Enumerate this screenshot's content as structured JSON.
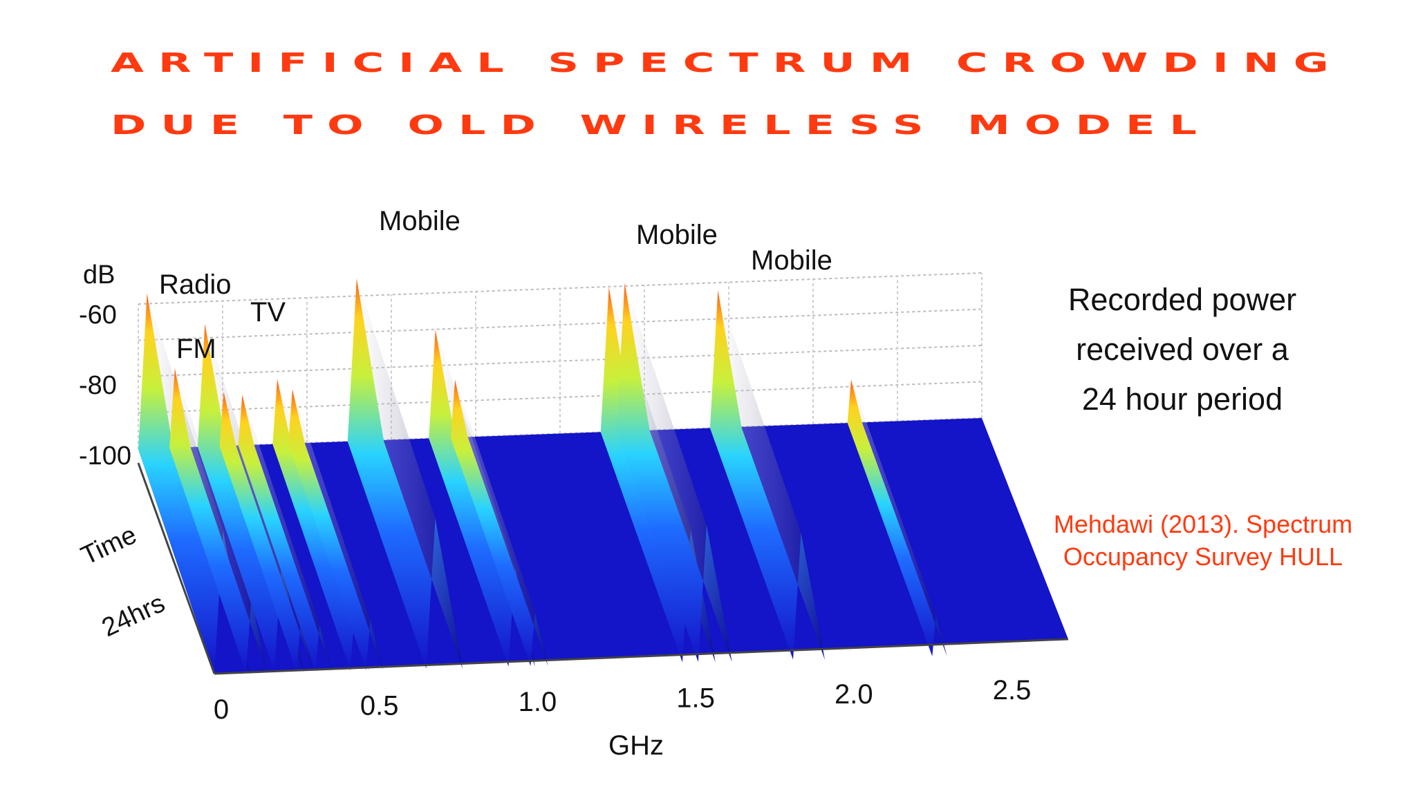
{
  "title": {
    "line1": "ARTIFICIAL SPECTRUM CROWDING",
    "line2": "DUE TO OLD WIRELESS MODEL"
  },
  "caption": {
    "line1": "Recorded power",
    "line2": "received over a",
    "line3": "24 hour period"
  },
  "citation": {
    "line1": "Mehdawi (2013). Spectrum",
    "line2": "Occupancy Survey HULL"
  },
  "colors": {
    "title": "#ff3a10",
    "floor": "#1414c8",
    "peak_low": "#1e6bff",
    "peak_mid": "#ffd21e",
    "peak_high": "#ff5a14"
  },
  "chart_data": {
    "type": "surface-3d",
    "x_axis": {
      "label": "GHz",
      "ticks": [
        "0",
        "0.5",
        "1.0",
        "1.5",
        "2.0",
        "2.5"
      ],
      "range": [
        0,
        2.7
      ]
    },
    "z_axis": {
      "label": "dB",
      "ticks": [
        "-60",
        "-80",
        "-100"
      ],
      "range": [
        -100,
        -55
      ]
    },
    "y_axis": {
      "label": "Time",
      "sublabel": "24hrs"
    },
    "band_labels": [
      "Radio",
      "FM",
      "TV",
      "Mobile",
      "Mobile",
      "Mobile"
    ],
    "bands": [
      {
        "label": "Radio",
        "freq_ghz": 0.0,
        "peak_db": -57
      },
      {
        "label": "FM",
        "freq_ghz": 0.1,
        "peak_db": -78
      },
      {
        "label": "TV",
        "freq_ghz": 0.19,
        "peak_db": -66
      },
      {
        "label": "",
        "freq_ghz": 0.26,
        "peak_db": -85
      },
      {
        "label": "",
        "freq_ghz": 0.32,
        "peak_db": -86
      },
      {
        "label": "",
        "freq_ghz": 0.43,
        "peak_db": -82
      },
      {
        "label": "",
        "freq_ghz": 0.48,
        "peak_db": -85
      },
      {
        "label": "Mobile",
        "freq_ghz": 0.67,
        "peak_db": -55
      },
      {
        "label": "",
        "freq_ghz": 0.93,
        "peak_db": -70
      },
      {
        "label": "",
        "freq_ghz": 1.0,
        "peak_db": -84
      },
      {
        "label": "Mobile",
        "freq_ghz": 1.48,
        "peak_db": -60
      },
      {
        "label": "",
        "freq_ghz": 1.53,
        "peak_db": -59
      },
      {
        "label": "Mobile",
        "freq_ghz": 1.83,
        "peak_db": -62
      },
      {
        "label": "",
        "freq_ghz": 2.27,
        "peak_db": -88
      }
    ],
    "noise_floor_db": -100
  }
}
